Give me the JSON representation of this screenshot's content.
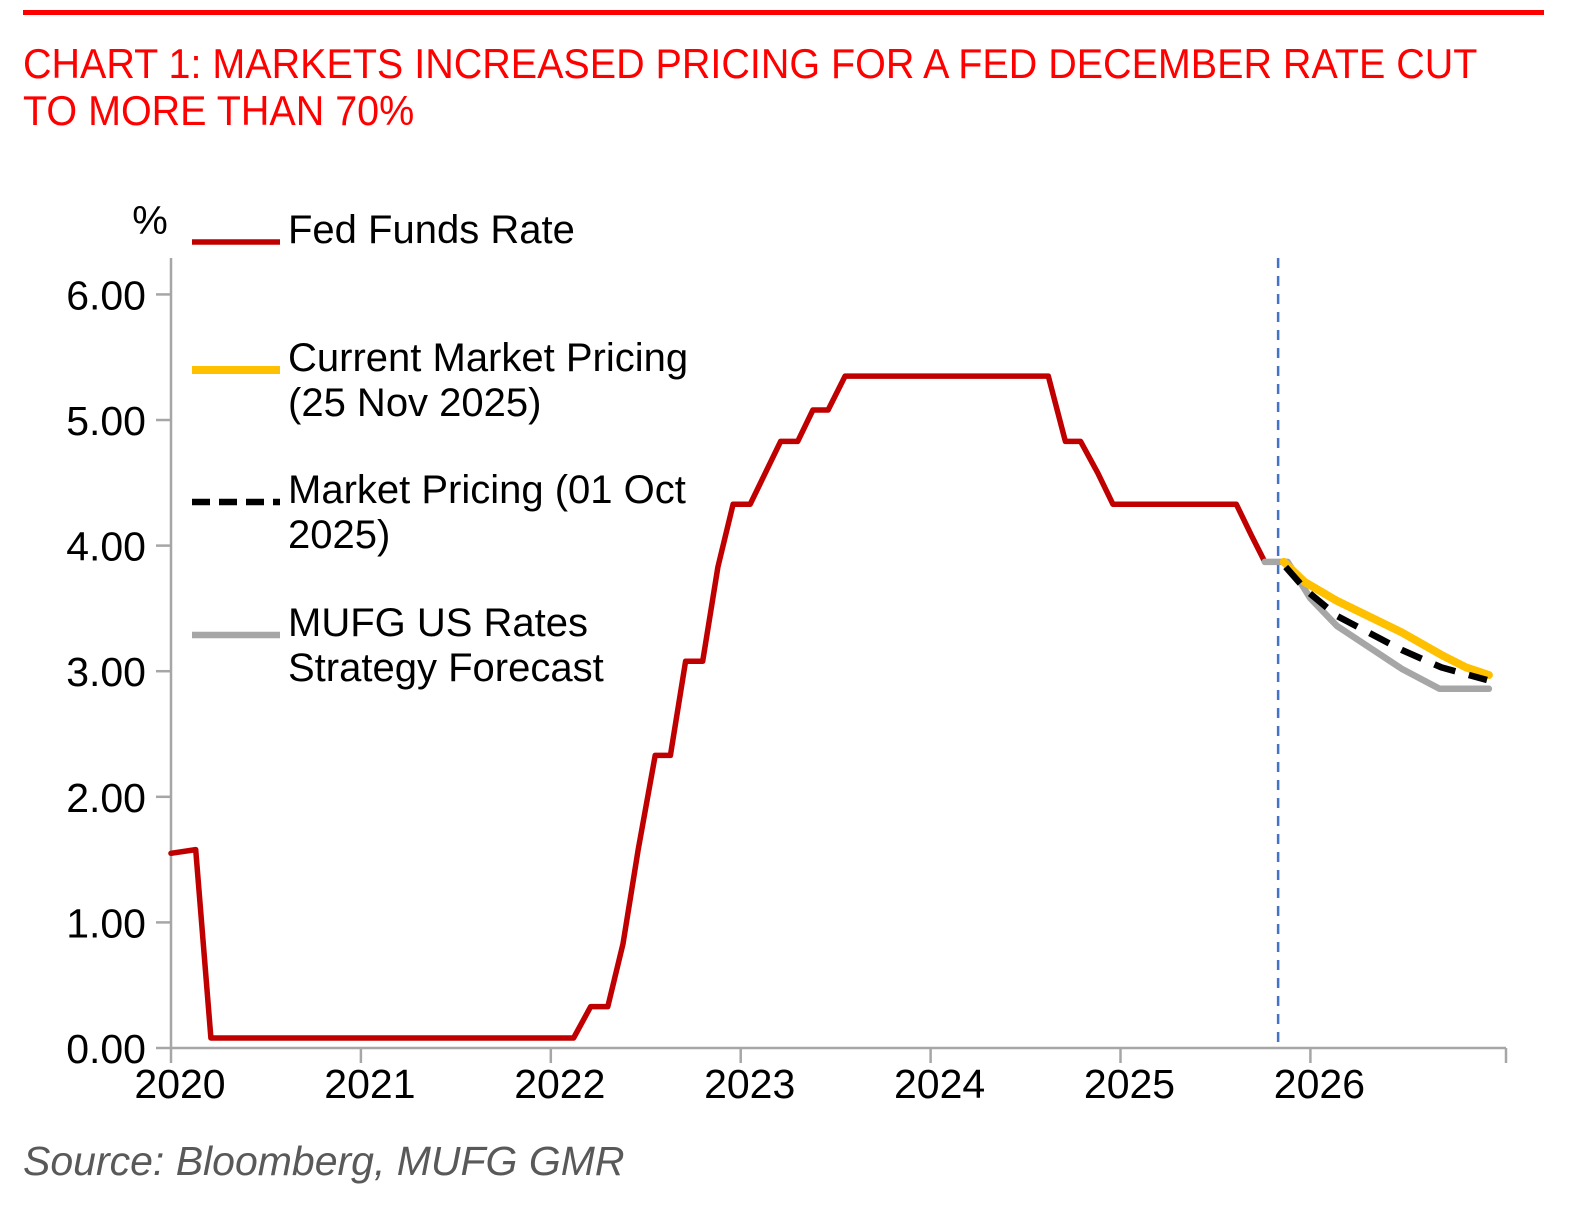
{
  "title": {
    "line1": "CHART 1: MARKETS INCREASED PRICING FOR A FED DECEMBER RATE CUT",
    "line2": "TO MORE THAN 70%"
  },
  "chart": {
    "unit": "%"
  },
  "source": {
    "text": "Source: Bloomberg, MUFG GMR"
  },
  "colors": {
    "title_red": "#ff0000",
    "rule_red": "#ff0000",
    "fed_funds_line": "#c00000",
    "current_pricing_line": "#ffc000",
    "oct_pricing_line": "#000000",
    "mufg_forecast_line": "#a6a6a6",
    "marker_blue": "#4472c4",
    "axis_gray": "#a6a6a6",
    "source_gray": "#595959"
  },
  "chart_data": {
    "type": "line",
    "title": "CHART 1: MARKETS INCREASED PRICING FOR A FED DECEMBER RATE CUT TO MORE THAN 70%",
    "xlabel": "",
    "ylabel": "%",
    "grid": false,
    "legend_position": "upper-left-inside",
    "xlim": [
      2020,
      2027.03
    ],
    "ylim": [
      0,
      6.29
    ],
    "x_ticks": [
      2020,
      2021,
      2022,
      2023,
      2024,
      2025,
      2026
    ],
    "y_ticks": [
      0,
      1,
      2,
      3,
      4,
      5,
      6
    ],
    "y_tick_labels": [
      "0.00",
      "1.00",
      "2.00",
      "3.00",
      "4.00",
      "5.00",
      "6.00"
    ],
    "vertical_marker": {
      "x": 2025.83,
      "style": "dashed",
      "color": "#4472c4"
    },
    "series": [
      {
        "name": "Fed Funds Rate",
        "legend_lines": [
          "Fed Funds Rate"
        ],
        "color": "#c00000",
        "style": "solid",
        "width": 5.5,
        "z": 1,
        "points": [
          [
            2020.0,
            1.55
          ],
          [
            2020.13,
            1.58
          ],
          [
            2020.21,
            0.08
          ],
          [
            2022.12,
            0.08
          ],
          [
            2022.21,
            0.33
          ],
          [
            2022.3,
            0.33
          ],
          [
            2022.38,
            0.83
          ],
          [
            2022.46,
            1.58
          ],
          [
            2022.55,
            2.33
          ],
          [
            2022.63,
            2.33
          ],
          [
            2022.71,
            3.08
          ],
          [
            2022.8,
            3.08
          ],
          [
            2022.88,
            3.83
          ],
          [
            2022.96,
            4.33
          ],
          [
            2023.05,
            4.33
          ],
          [
            2023.13,
            4.58
          ],
          [
            2023.21,
            4.83
          ],
          [
            2023.3,
            4.83
          ],
          [
            2023.38,
            5.08
          ],
          [
            2023.46,
            5.08
          ],
          [
            2023.55,
            5.35
          ],
          [
            2024.62,
            5.35
          ],
          [
            2024.71,
            4.83
          ],
          [
            2024.79,
            4.83
          ],
          [
            2024.88,
            4.58
          ],
          [
            2024.96,
            4.33
          ],
          [
            2025.61,
            4.33
          ],
          [
            2025.69,
            4.08
          ],
          [
            2025.76,
            3.87
          ]
        ]
      },
      {
        "name": "Current Market Pricing (25 Nov 2025)",
        "legend_lines": [
          "Current Market Pricing",
          "(25 Nov 2025)"
        ],
        "color": "#ffc000",
        "style": "solid",
        "width": 8,
        "z": 3,
        "points": [
          [
            2025.86,
            3.87
          ],
          [
            2025.97,
            3.71
          ],
          [
            2026.14,
            3.56
          ],
          [
            2026.48,
            3.31
          ],
          [
            2026.69,
            3.13
          ],
          [
            2026.82,
            3.03
          ],
          [
            2026.94,
            2.97
          ]
        ]
      },
      {
        "name": "Market Pricing (01 Oct 2025)",
        "legend_lines": [
          "Market Pricing (01 Oct",
          "2025)"
        ],
        "color": "#000000",
        "style": "dashed",
        "width": 6.5,
        "z": 4,
        "points": [
          [
            2025.87,
            3.83
          ],
          [
            2025.98,
            3.64
          ],
          [
            2026.14,
            3.44
          ],
          [
            2026.48,
            3.17
          ],
          [
            2026.69,
            3.03
          ],
          [
            2026.93,
            2.93
          ]
        ]
      },
      {
        "name": "MUFG US Rates Strategy Forecast",
        "legend_lines": [
          "MUFG US Rates",
          "Strategy Forecast"
        ],
        "color": "#a6a6a6",
        "style": "solid",
        "width": 6.5,
        "z": 2,
        "points": [
          [
            2025.76,
            3.87
          ],
          [
            2025.88,
            3.87
          ],
          [
            2026.0,
            3.58
          ],
          [
            2026.14,
            3.36
          ],
          [
            2026.48,
            3.02
          ],
          [
            2026.68,
            2.86
          ],
          [
            2026.94,
            2.86
          ]
        ]
      }
    ]
  }
}
